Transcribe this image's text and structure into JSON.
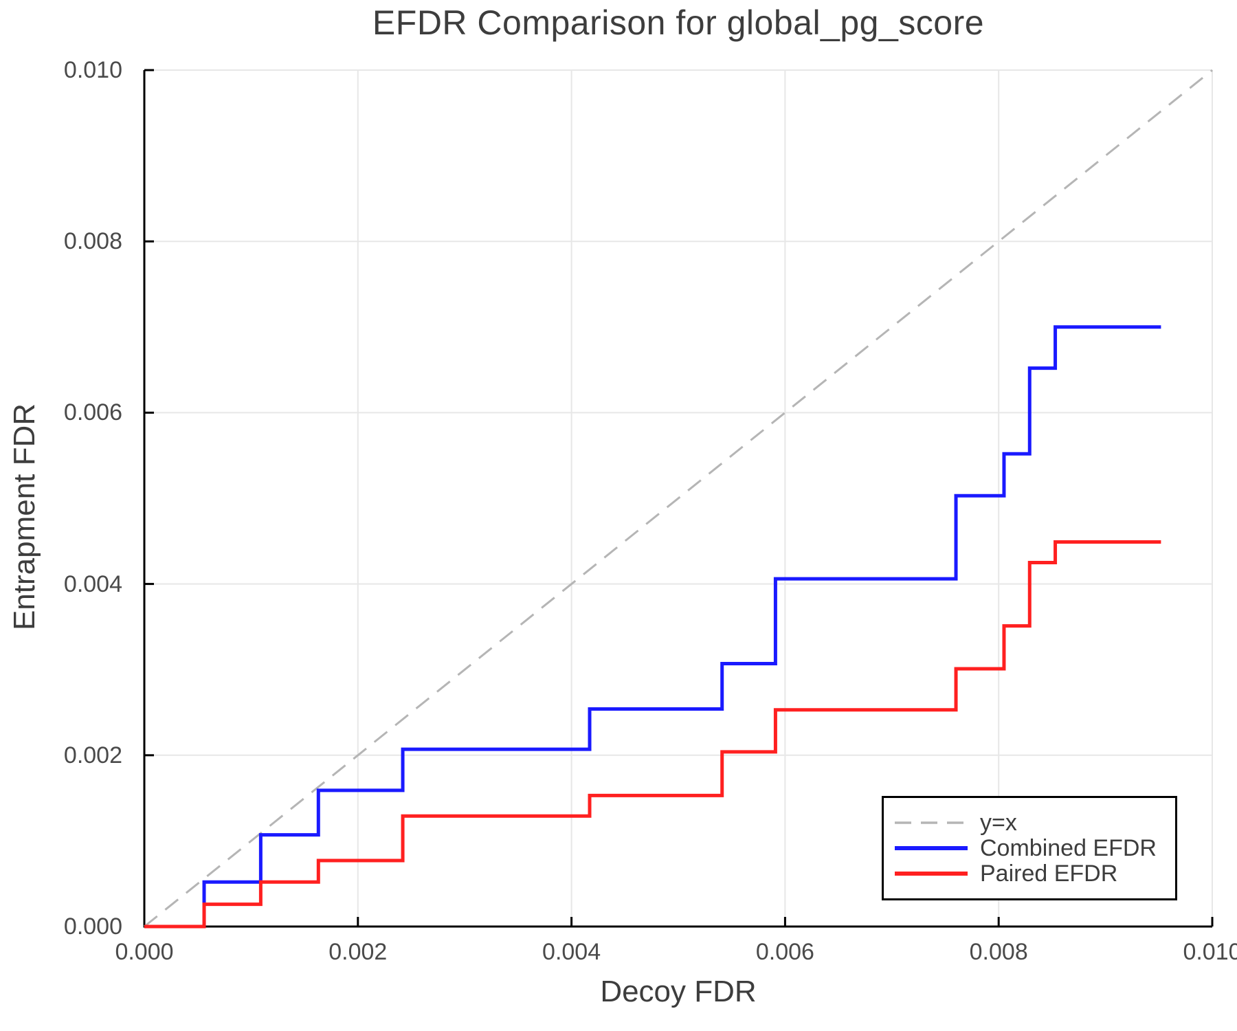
{
  "chart_data": {
    "type": "line",
    "title": "EFDR Comparison for global_pg_score",
    "xlabel": "Decoy FDR",
    "ylabel": "Entrapment FDR",
    "xlim": [
      0,
      0.01
    ],
    "ylim": [
      0,
      0.01
    ],
    "grid": true,
    "legend_position": "bottom-right",
    "x_ticks": {
      "values": [
        0,
        0.002,
        0.004,
        0.006,
        0.008,
        0.01
      ],
      "labels": [
        "0.000",
        "0.002",
        "0.004",
        "0.006",
        "0.008",
        "0.010"
      ]
    },
    "y_ticks": {
      "values": [
        0,
        0.002,
        0.004,
        0.006,
        0.008,
        0.01
      ],
      "labels": [
        "0.000",
        "0.002",
        "0.004",
        "0.006",
        "0.008",
        "0.010"
      ]
    },
    "series": [
      {
        "name": "y=x",
        "draw": "line",
        "dash": true,
        "color": "#b5b5b5",
        "x": [
          0,
          0.01
        ],
        "y": [
          0,
          0.01
        ]
      },
      {
        "name": "Combined EFDR",
        "draw": "step",
        "dash": false,
        "color": "#1a1aff",
        "x": [
          0,
          0.00056,
          0.00109,
          0.00163,
          0.00242,
          0.00417,
          0.00541,
          0.00591,
          0.0076,
          0.00805,
          0.00829,
          0.00853,
          0.00952
        ],
        "y": [
          0,
          0.00052,
          0.00107,
          0.00159,
          0.00207,
          0.00254,
          0.00307,
          0.00406,
          0.00503,
          0.00552,
          0.00652,
          0.007,
          0.007
        ]
      },
      {
        "name": "Paired EFDR",
        "draw": "step",
        "dash": false,
        "color": "#ff2020",
        "x": [
          0,
          0.00056,
          0.00109,
          0.00163,
          0.00242,
          0.00417,
          0.00541,
          0.00591,
          0.0076,
          0.00805,
          0.00829,
          0.00853,
          0.00952
        ],
        "y": [
          0,
          0.00026,
          0.00052,
          0.00077,
          0.00129,
          0.00153,
          0.00204,
          0.00253,
          0.00301,
          0.00351,
          0.00425,
          0.00449,
          0.00449
        ]
      }
    ]
  }
}
